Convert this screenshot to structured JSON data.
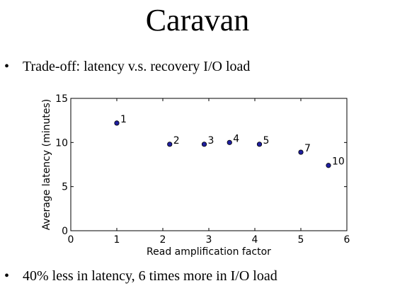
{
  "slide": {
    "title": "Caravan",
    "bullets": [
      "Trade-off: latency v.s. recovery I/O load",
      "40% less in latency, 6 times more in I/O load"
    ],
    "bullet_symbol": "•"
  },
  "chart_data": {
    "type": "scatter",
    "title": "",
    "xlabel": "Read amplification factor",
    "ylabel": "Average latency (minutes)",
    "xlim": [
      0,
      6
    ],
    "ylim": [
      0,
      15
    ],
    "xticks": [
      0,
      1,
      2,
      3,
      4,
      5,
      6
    ],
    "yticks": [
      0,
      5,
      10,
      15
    ],
    "grid": false,
    "marker_color": "#1f1f9f",
    "points": [
      {
        "x": 1.0,
        "y": 12.2,
        "label": "1"
      },
      {
        "x": 2.15,
        "y": 9.8,
        "label": "2"
      },
      {
        "x": 2.9,
        "y": 9.8,
        "label": "3"
      },
      {
        "x": 3.45,
        "y": 10.0,
        "label": "4"
      },
      {
        "x": 4.1,
        "y": 9.8,
        "label": "5"
      },
      {
        "x": 5.0,
        "y": 8.9,
        "label": "7"
      },
      {
        "x": 5.6,
        "y": 7.4,
        "label": "10"
      }
    ]
  }
}
